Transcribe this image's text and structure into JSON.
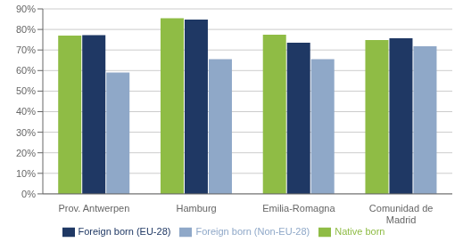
{
  "chart_data": {
    "type": "bar",
    "categories": [
      "Prov. Antwerpen",
      "Hamburg",
      "Emilia-Romagna",
      "Comunidad de\nMadrid"
    ],
    "series": [
      {
        "name": "Native born",
        "color": "#8fbc45",
        "values": [
          0.77,
          0.855,
          0.775,
          0.748
        ]
      },
      {
        "name": "Foreign born (EU-28)",
        "color": "#1f3864",
        "values": [
          0.772,
          0.848,
          0.735,
          0.757
        ]
      },
      {
        "name": "Foreign born (Non-EU-28)",
        "color": "#8fa8c8",
        "values": [
          0.59,
          0.655,
          0.655,
          0.718
        ]
      }
    ],
    "ylim": [
      0,
      0.9
    ],
    "yticks": [
      {
        "value": 0.0,
        "label": "0%"
      },
      {
        "value": 0.1,
        "label": "10%"
      },
      {
        "value": 0.2,
        "label": "20%"
      },
      {
        "value": 0.3,
        "label": "30%"
      },
      {
        "value": 0.4,
        "label": "40%"
      },
      {
        "value": 0.5,
        "label": "50%"
      },
      {
        "value": 0.6,
        "label": "60%"
      },
      {
        "value": 0.7,
        "label": "70%"
      },
      {
        "value": 0.8,
        "label": "80%"
      },
      {
        "value": 0.9,
        "label": "90%"
      }
    ],
    "grid": true,
    "legend": "bottom"
  }
}
